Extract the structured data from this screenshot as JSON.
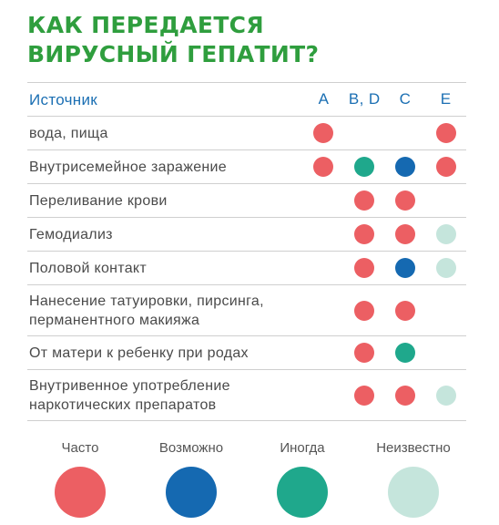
{
  "title": {
    "line1": "КАК ПЕРЕДАЕТСЯ",
    "line2": "ВИРУСНЫЙ ГЕПАТИТ?"
  },
  "table": {
    "header": {
      "source": "Источник",
      "cols": [
        "A",
        "B, D",
        "C",
        "E"
      ]
    },
    "rows": [
      {
        "source": "вода, пища",
        "cells": [
          "frequent",
          null,
          null,
          "frequent"
        ]
      },
      {
        "source": "Внутрисемейное заражение",
        "cells": [
          "frequent",
          "sometimes",
          "possible",
          "frequent"
        ]
      },
      {
        "source": "Переливание крови",
        "cells": [
          null,
          "frequent",
          "frequent",
          null
        ]
      },
      {
        "source": "Гемодиализ",
        "cells": [
          null,
          "frequent",
          "frequent",
          "unknown"
        ]
      },
      {
        "source": "Половой контакт",
        "cells": [
          null,
          "frequent",
          "possible",
          "unknown"
        ]
      },
      {
        "source": "Нанесение татуировки, пирсинга, перманентного макияжа",
        "cells": [
          null,
          "frequent",
          "frequent",
          null
        ]
      },
      {
        "source": "От матери к ребенку при родах",
        "cells": [
          null,
          "frequent",
          "sometimes",
          null
        ]
      },
      {
        "source": "Внутривенное употребление наркотических препаратов",
        "cells": [
          null,
          "frequent",
          "frequent",
          "unknown"
        ]
      }
    ]
  },
  "legend": [
    {
      "key": "frequent",
      "label": "Часто",
      "color": "#ec5f63"
    },
    {
      "key": "possible",
      "label": "Возможно",
      "color": "#1569b1"
    },
    {
      "key": "sometimes",
      "label": "Иногда",
      "color": "#1fa88c"
    },
    {
      "key": "unknown",
      "label": "Неизвестно",
      "color": "#c5e5dc"
    }
  ]
}
